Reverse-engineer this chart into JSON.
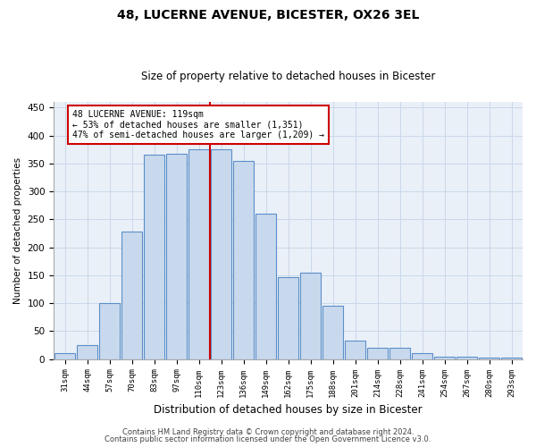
{
  "title1": "48, LUCERNE AVENUE, BICESTER, OX26 3EL",
  "title2": "Size of property relative to detached houses in Bicester",
  "xlabel": "Distribution of detached houses by size in Bicester",
  "ylabel": "Number of detached properties",
  "categories": [
    "31sqm",
    "44sqm",
    "57sqm",
    "70sqm",
    "83sqm",
    "97sqm",
    "110sqm",
    "123sqm",
    "136sqm",
    "149sqm",
    "162sqm",
    "175sqm",
    "188sqm",
    "201sqm",
    "214sqm",
    "228sqm",
    "241sqm",
    "254sqm",
    "267sqm",
    "280sqm",
    "293sqm"
  ],
  "values": [
    10,
    25,
    100,
    228,
    365,
    368,
    375,
    375,
    355,
    260,
    147,
    155,
    95,
    33,
    20,
    20,
    10,
    5,
    5,
    3,
    3
  ],
  "bar_color": "#c9d9ed",
  "bar_edge_color": "#5b8fc9",
  "grid_color": "#c8d8e8",
  "bg_color": "#eaf0f8",
  "vline_color": "#cc0000",
  "annotation_line1": "48 LUCERNE AVENUE: 119sqm",
  "annotation_line2": "← 53% of detached houses are smaller (1,351)",
  "annotation_line3": "47% of semi-detached houses are larger (1,209) →",
  "annotation_box_color": "#ffffff",
  "annotation_box_edge": "#cc0000",
  "footer1": "Contains HM Land Registry data © Crown copyright and database right 2024.",
  "footer2": "Contains public sector information licensed under the Open Government Licence v3.0.",
  "ylim": [
    0,
    460
  ],
  "yticks": [
    0,
    50,
    100,
    150,
    200,
    250,
    300,
    350,
    400,
    450
  ]
}
